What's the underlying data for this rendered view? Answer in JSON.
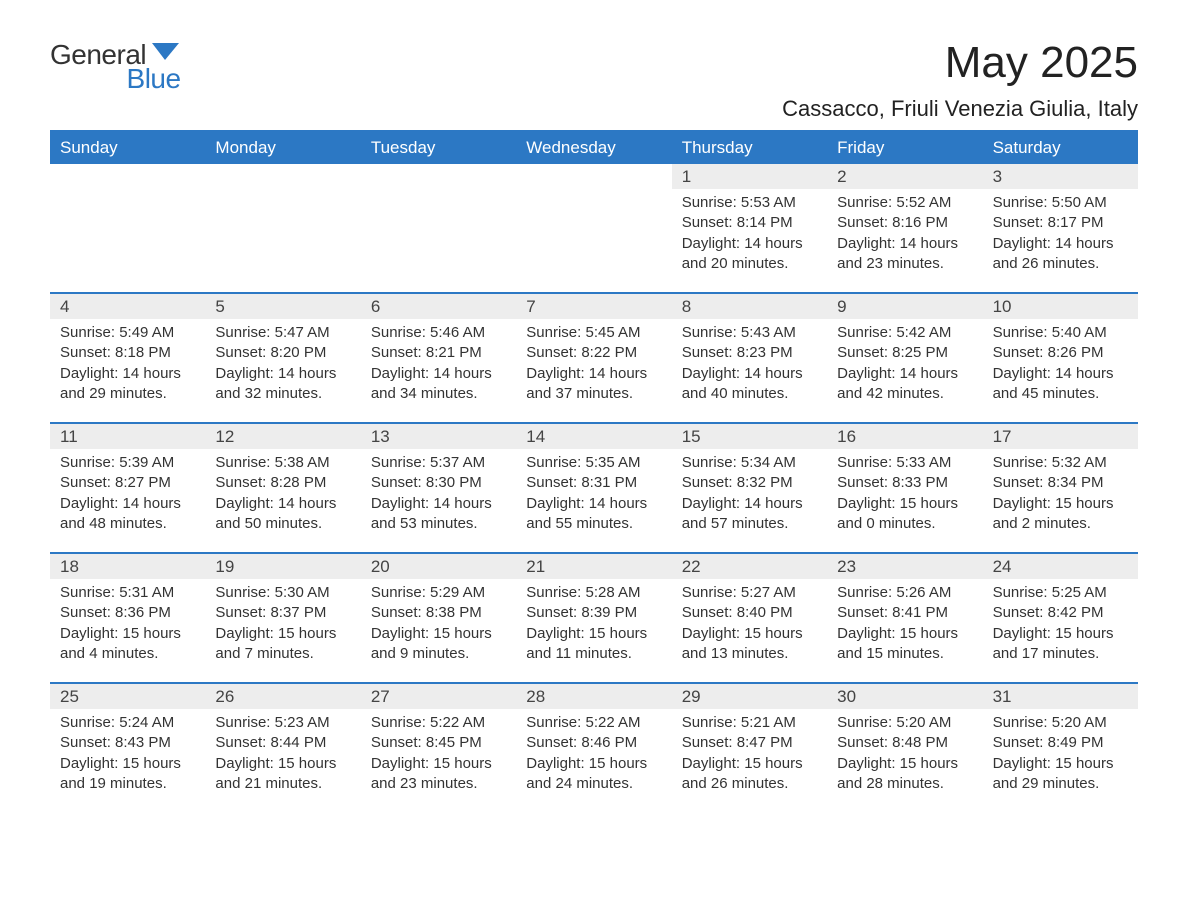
{
  "logo": {
    "general": "General",
    "blue": "Blue",
    "mark_color": "#2c78c4"
  },
  "title": "May 2025",
  "subtitle": "Cassacco, Friuli Venezia Giulia, Italy",
  "colors": {
    "header_bg": "#2c78c4",
    "header_text": "#ffffff",
    "daynum_bg": "#ededed",
    "rule": "#2c78c4",
    "body_text": "#333333",
    "page_bg": "#ffffff"
  },
  "day_names": [
    "Sunday",
    "Monday",
    "Tuesday",
    "Wednesday",
    "Thursday",
    "Friday",
    "Saturday"
  ],
  "leading_blanks": 4,
  "days": [
    {
      "n": "1",
      "sunrise": "5:53 AM",
      "sunset": "8:14 PM",
      "daylight": "14 hours and 20 minutes."
    },
    {
      "n": "2",
      "sunrise": "5:52 AM",
      "sunset": "8:16 PM",
      "daylight": "14 hours and 23 minutes."
    },
    {
      "n": "3",
      "sunrise": "5:50 AM",
      "sunset": "8:17 PM",
      "daylight": "14 hours and 26 minutes."
    },
    {
      "n": "4",
      "sunrise": "5:49 AM",
      "sunset": "8:18 PM",
      "daylight": "14 hours and 29 minutes."
    },
    {
      "n": "5",
      "sunrise": "5:47 AM",
      "sunset": "8:20 PM",
      "daylight": "14 hours and 32 minutes."
    },
    {
      "n": "6",
      "sunrise": "5:46 AM",
      "sunset": "8:21 PM",
      "daylight": "14 hours and 34 minutes."
    },
    {
      "n": "7",
      "sunrise": "5:45 AM",
      "sunset": "8:22 PM",
      "daylight": "14 hours and 37 minutes."
    },
    {
      "n": "8",
      "sunrise": "5:43 AM",
      "sunset": "8:23 PM",
      "daylight": "14 hours and 40 minutes."
    },
    {
      "n": "9",
      "sunrise": "5:42 AM",
      "sunset": "8:25 PM",
      "daylight": "14 hours and 42 minutes."
    },
    {
      "n": "10",
      "sunrise": "5:40 AM",
      "sunset": "8:26 PM",
      "daylight": "14 hours and 45 minutes."
    },
    {
      "n": "11",
      "sunrise": "5:39 AM",
      "sunset": "8:27 PM",
      "daylight": "14 hours and 48 minutes."
    },
    {
      "n": "12",
      "sunrise": "5:38 AM",
      "sunset": "8:28 PM",
      "daylight": "14 hours and 50 minutes."
    },
    {
      "n": "13",
      "sunrise": "5:37 AM",
      "sunset": "8:30 PM",
      "daylight": "14 hours and 53 minutes."
    },
    {
      "n": "14",
      "sunrise": "5:35 AM",
      "sunset": "8:31 PM",
      "daylight": "14 hours and 55 minutes."
    },
    {
      "n": "15",
      "sunrise": "5:34 AM",
      "sunset": "8:32 PM",
      "daylight": "14 hours and 57 minutes."
    },
    {
      "n": "16",
      "sunrise": "5:33 AM",
      "sunset": "8:33 PM",
      "daylight": "15 hours and 0 minutes."
    },
    {
      "n": "17",
      "sunrise": "5:32 AM",
      "sunset": "8:34 PM",
      "daylight": "15 hours and 2 minutes."
    },
    {
      "n": "18",
      "sunrise": "5:31 AM",
      "sunset": "8:36 PM",
      "daylight": "15 hours and 4 minutes."
    },
    {
      "n": "19",
      "sunrise": "5:30 AM",
      "sunset": "8:37 PM",
      "daylight": "15 hours and 7 minutes."
    },
    {
      "n": "20",
      "sunrise": "5:29 AM",
      "sunset": "8:38 PM",
      "daylight": "15 hours and 9 minutes."
    },
    {
      "n": "21",
      "sunrise": "5:28 AM",
      "sunset": "8:39 PM",
      "daylight": "15 hours and 11 minutes."
    },
    {
      "n": "22",
      "sunrise": "5:27 AM",
      "sunset": "8:40 PM",
      "daylight": "15 hours and 13 minutes."
    },
    {
      "n": "23",
      "sunrise": "5:26 AM",
      "sunset": "8:41 PM",
      "daylight": "15 hours and 15 minutes."
    },
    {
      "n": "24",
      "sunrise": "5:25 AM",
      "sunset": "8:42 PM",
      "daylight": "15 hours and 17 minutes."
    },
    {
      "n": "25",
      "sunrise": "5:24 AM",
      "sunset": "8:43 PM",
      "daylight": "15 hours and 19 minutes."
    },
    {
      "n": "26",
      "sunrise": "5:23 AM",
      "sunset": "8:44 PM",
      "daylight": "15 hours and 21 minutes."
    },
    {
      "n": "27",
      "sunrise": "5:22 AM",
      "sunset": "8:45 PM",
      "daylight": "15 hours and 23 minutes."
    },
    {
      "n": "28",
      "sunrise": "5:22 AM",
      "sunset": "8:46 PM",
      "daylight": "15 hours and 24 minutes."
    },
    {
      "n": "29",
      "sunrise": "5:21 AM",
      "sunset": "8:47 PM",
      "daylight": "15 hours and 26 minutes."
    },
    {
      "n": "30",
      "sunrise": "5:20 AM",
      "sunset": "8:48 PM",
      "daylight": "15 hours and 28 minutes."
    },
    {
      "n": "31",
      "sunrise": "5:20 AM",
      "sunset": "8:49 PM",
      "daylight": "15 hours and 29 minutes."
    }
  ],
  "labels": {
    "sunrise": "Sunrise: ",
    "sunset": "Sunset: ",
    "daylight": "Daylight: "
  }
}
